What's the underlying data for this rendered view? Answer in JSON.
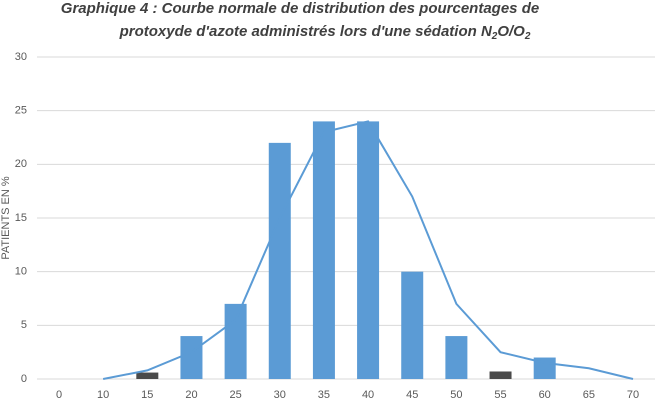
{
  "chart_data": {
    "type": "bar-line",
    "title": [
      "Graphique  4 : Courbe normale de distribution des pourcentages de",
      "protoxyde d'azote administrés lors d'une sédation N",
      "2",
      "O/O",
      "2"
    ],
    "y_label": "PATIENTS EN %",
    "categories": [
      "0",
      "10",
      "15",
      "20",
      "25",
      "30",
      "35",
      "40",
      "45",
      "50",
      "55",
      "60",
      "65",
      "70"
    ],
    "series": [
      {
        "kind": "bar",
        "color": "#5b9bd5",
        "colors": [
          null,
          null,
          "#4a4a4a",
          "#5b9bd5",
          "#5b9bd5",
          "#5b9bd5",
          "#5b9bd5",
          "#5b9bd5",
          "#5b9bd5",
          "#5b9bd5",
          "#4a4a4a",
          "#5b9bd5",
          null,
          null
        ],
        "values": [
          null,
          null,
          0.6,
          4,
          7,
          22,
          24,
          24,
          10,
          4,
          0.7,
          2,
          null,
          null
        ]
      },
      {
        "kind": "line",
        "color": "#5b9bd5",
        "values": [
          null,
          0,
          0.8,
          2.5,
          5.5,
          15,
          23,
          24,
          17,
          7,
          2.5,
          1.5,
          1,
          0
        ]
      }
    ],
    "ylim": [
      0,
      30
    ],
    "yticks": [
      0,
      5,
      10,
      15,
      20,
      25,
      30
    ],
    "grid": true
  }
}
